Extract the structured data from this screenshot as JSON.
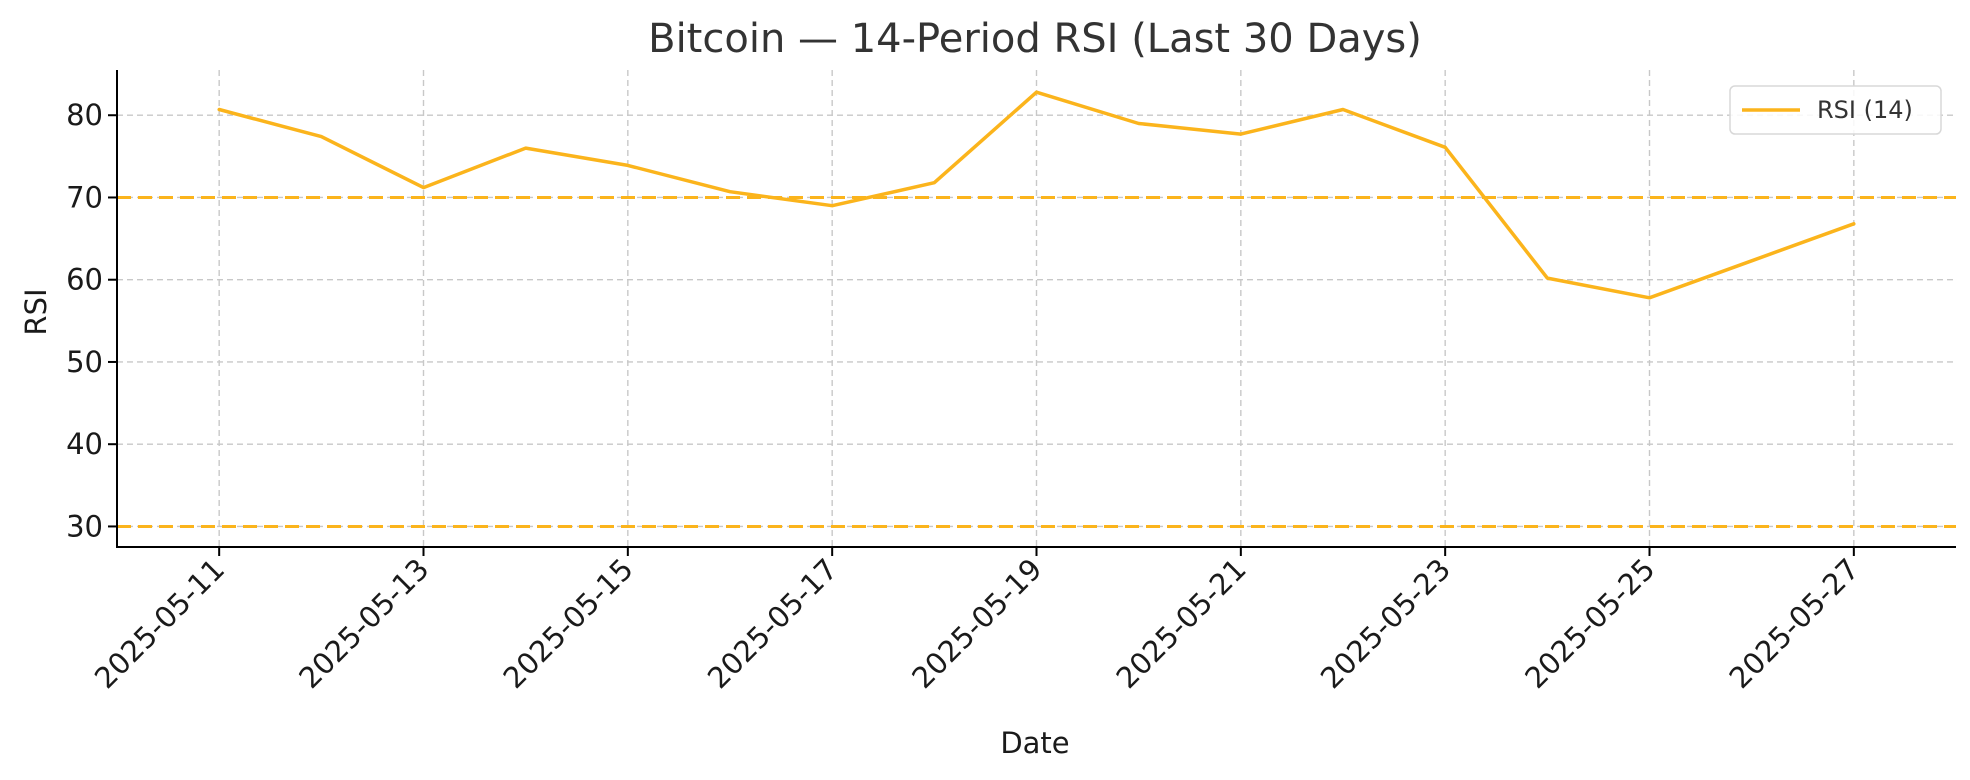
{
  "chart_data": {
    "type": "line",
    "title": "Bitcoin — 14-Period RSI (Last 30 Days)",
    "xlabel": "Date",
    "ylabel": "RSI",
    "ylim": [
      27.5,
      85.5
    ],
    "xlim": [
      "2025-05-10",
      "2025-05-28"
    ],
    "grid": true,
    "legend_position": "top-right",
    "x_ticks": [
      "2025-05-11",
      "2025-05-13",
      "2025-05-15",
      "2025-05-17",
      "2025-05-19",
      "2025-05-21",
      "2025-05-23",
      "2025-05-25",
      "2025-05-27"
    ],
    "y_ticks": [
      30,
      40,
      50,
      60,
      70,
      80
    ],
    "reference_lines": [
      {
        "y": 70,
        "color": "#FBB41C",
        "style": "dashed"
      },
      {
        "y": 30,
        "color": "#FBB41C",
        "style": "dashed"
      }
    ],
    "series": [
      {
        "name": "RSI (14)",
        "color": "#FBB41C",
        "x": [
          "2025-05-11",
          "2025-05-12",
          "2025-05-13",
          "2025-05-14",
          "2025-05-15",
          "2025-05-16",
          "2025-05-17",
          "2025-05-18",
          "2025-05-19",
          "2025-05-20",
          "2025-05-21",
          "2025-05-22",
          "2025-05-23",
          "2025-05-24",
          "2025-05-25",
          "2025-05-26",
          "2025-05-27"
        ],
        "values": [
          80.7,
          77.4,
          71.2,
          76.0,
          73.9,
          70.7,
          69.0,
          71.8,
          82.8,
          79.0,
          77.7,
          80.7,
          76.1,
          60.2,
          57.8,
          62.3,
          66.8
        ]
      }
    ]
  }
}
